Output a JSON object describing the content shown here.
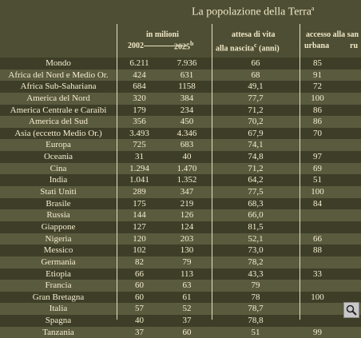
{
  "title": "La popolazione della Terra",
  "title_sup": "a",
  "headers": {
    "millions": "in milioni",
    "y2002": "2002",
    "y2025": "2025",
    "y2025_sup": "b",
    "life1": "attesa di vita",
    "life2": "alla nascita",
    "life_sup": "c",
    "life_unit": "(anni)",
    "water1": "accesso alla san",
    "urban": "urbana",
    "rural": "ru"
  },
  "rows": [
    {
      "name": "Mondo",
      "v2002": "6.211",
      "v2025": "7.936",
      "life": "66",
      "urb": "85",
      "rur": ""
    },
    {
      "name": "Africa del Nord e Medio Or.",
      "v2002": "424",
      "v2025": "631",
      "life": "68",
      "urb": "91",
      "rur": ""
    },
    {
      "name": "Africa Sub-Sahariana",
      "v2002": "684",
      "v2025": "1158",
      "life": "49,1",
      "urb": "72",
      "rur": ""
    },
    {
      "name": "America del Nord",
      "v2002": "320",
      "v2025": "384",
      "life": "77,7",
      "urb": "100",
      "rur": ""
    },
    {
      "name": "America Centrale e Caraibi",
      "v2002": "179",
      "v2025": "234",
      "life": "71,2",
      "urb": "86",
      "rur": ""
    },
    {
      "name": "America del Sud",
      "v2002": "356",
      "v2025": "450",
      "life": "70,2",
      "urb": "86",
      "rur": ""
    },
    {
      "name": "Asia (eccetto Medio Or.)",
      "v2002": "3.493",
      "v2025": "4.346",
      "life": "67,9",
      "urb": "70",
      "rur": ""
    },
    {
      "name": "Europa",
      "v2002": "725",
      "v2025": "683",
      "life": "74,1",
      "urb": "",
      "rur": ""
    },
    {
      "name": "Oceania",
      "v2002": "31",
      "v2025": "40",
      "life": "74,8",
      "urb": "97",
      "rur": ""
    },
    {
      "name": "Cina",
      "v2002": "1.294",
      "v2025": "1.470",
      "life": "71,2",
      "urb": "69",
      "rur": ""
    },
    {
      "name": "India",
      "v2002": "1.041",
      "v2025": "1.352",
      "life": "64,2",
      "urb": "51",
      "rur": ""
    },
    {
      "name": "Stati Uniti",
      "v2002": "289",
      "v2025": "347",
      "life": "77,5",
      "urb": "100",
      "rur": ""
    },
    {
      "name": "Brasile",
      "v2002": "175",
      "v2025": "219",
      "life": "68,3",
      "urb": "84",
      "rur": ""
    },
    {
      "name": "Russia",
      "v2002": "144",
      "v2025": "126",
      "life": "66,0",
      "urb": "",
      "rur": ""
    },
    {
      "name": "Giappone",
      "v2002": "127",
      "v2025": "124",
      "life": "81,5",
      "urb": "",
      "rur": ""
    },
    {
      "name": "Nigeria",
      "v2002": "120",
      "v2025": "203",
      "life": "52,1",
      "urb": "66",
      "rur": ""
    },
    {
      "name": "Messico",
      "v2002": "102",
      "v2025": "130",
      "life": "73,0",
      "urb": "88",
      "rur": ""
    },
    {
      "name": "Germania",
      "v2002": "82",
      "v2025": "79",
      "life": "78,2",
      "urb": "",
      "rur": ""
    },
    {
      "name": "Etiopia",
      "v2002": "66",
      "v2025": "113",
      "life": "43,3",
      "urb": "33",
      "rur": ""
    },
    {
      "name": "Francia",
      "v2002": "60",
      "v2025": "63",
      "life": "79",
      "urb": "",
      "rur": ""
    },
    {
      "name": "Gran Bretagna",
      "v2002": "60",
      "v2025": "61",
      "life": "78",
      "urb": "100",
      "rur": ""
    },
    {
      "name": "Italia",
      "v2002": "57",
      "v2025": "52",
      "life": "78,7",
      "urb": "",
      "rur": ""
    },
    {
      "name": "Spagna",
      "v2002": "40",
      "v2025": "37",
      "life": "78,8",
      "urb": "",
      "rur": ""
    },
    {
      "name": "Tanzania",
      "v2002": "37",
      "v2025": "60",
      "life": "51",
      "urb": "99",
      "rur": ""
    }
  ],
  "zoom_icon": "magnifier-icon"
}
